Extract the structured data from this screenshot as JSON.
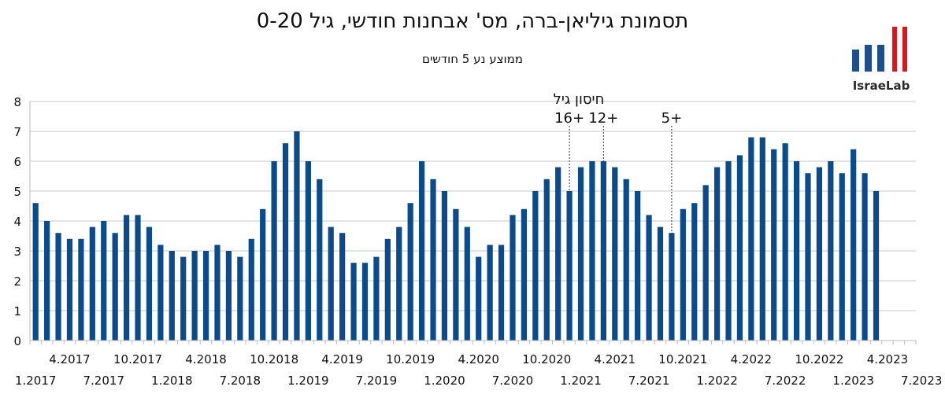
{
  "header": {
    "title": "תסמונת גיליאן-ברה, מס' אבחנות חודשי, גיל 0-20",
    "subtitle": "ממוצע נע 5 חודשים"
  },
  "logo": {
    "text": "IsraeLab",
    "bar_color": "#1f4e8c",
    "accent_color": "#d9161b"
  },
  "chart_data": {
    "type": "bar",
    "color": "#0b4a8b",
    "start_month": "1.2017",
    "ylim": [
      0,
      8
    ],
    "yticks": [
      0,
      1,
      2,
      3,
      4,
      5,
      6,
      7,
      8
    ],
    "grid": true,
    "values": [
      4.6,
      4.0,
      3.6,
      3.4,
      3.4,
      3.8,
      4.0,
      3.6,
      4.2,
      4.2,
      3.8,
      3.2,
      3.0,
      2.8,
      3.0,
      3.0,
      3.2,
      3.0,
      2.8,
      3.4,
      4.4,
      6.0,
      6.6,
      7.0,
      6.0,
      5.4,
      3.8,
      3.6,
      2.6,
      2.6,
      2.8,
      3.4,
      3.8,
      4.6,
      6.0,
      5.4,
      5.0,
      4.4,
      3.8,
      2.8,
      3.2,
      3.2,
      4.2,
      4.4,
      5.0,
      5.4,
      5.8,
      5.0,
      5.8,
      6.0,
      6.0,
      5.8,
      5.4,
      5.0,
      4.2,
      3.8,
      3.6,
      4.4,
      4.6,
      5.2,
      5.8,
      6.0,
      6.2,
      6.8,
      6.8,
      6.4,
      6.6,
      6.0,
      5.6,
      5.8,
      6.0,
      5.6,
      6.4,
      5.6,
      5.0
    ],
    "xtick_labels_upper": [
      "4.2017",
      "10.2017",
      "4.2018",
      "10.2018",
      "4.2019",
      "10.2019",
      "4.2020",
      "10.2020",
      "4.2021",
      "10.2021",
      "4.2022",
      "10.2022",
      "4.2023"
    ],
    "xtick_labels_lower": [
      "1.2017",
      "7.2017",
      "1.2018",
      "7.2018",
      "1.2019",
      "7.2019",
      "1.2020",
      "7.2020",
      "1.2021",
      "7.2021",
      "1.2022",
      "7.2022",
      "1.2023",
      "7.2023"
    ],
    "annotations": {
      "title": "חיסון גיל",
      "markers": [
        {
          "label": "16+",
          "month": "12.2020"
        },
        {
          "label": "12+",
          "month": "3.2021"
        },
        {
          "label": "5+",
          "month": "9.2021"
        }
      ]
    }
  }
}
